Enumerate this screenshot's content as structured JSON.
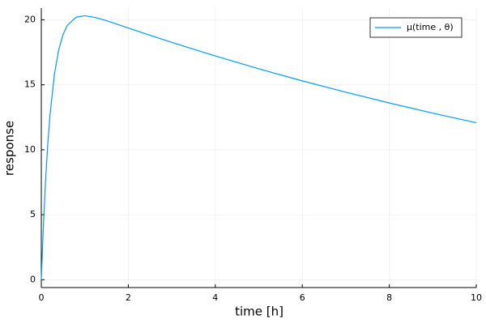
{
  "chart_data": {
    "type": "line",
    "x_label": "time [h]",
    "y_label": "response",
    "x": [
      0,
      0.05,
      0.1,
      0.15,
      0.2,
      0.3,
      0.4,
      0.5,
      0.6,
      0.8,
      1,
      1.25,
      1.5,
      2,
      2.5,
      3,
      4,
      5,
      6,
      7,
      8,
      9,
      10
    ],
    "series": [
      {
        "name": "μ(time , θ)",
        "color": "#009af9",
        "values": [
          0,
          4.33,
          7.77,
          10.51,
          12.68,
          15.77,
          17.69,
          18.87,
          19.58,
          20.2,
          20.31,
          20.17,
          19.93,
          19.37,
          18.81,
          18.26,
          17.22,
          16.23,
          15.3,
          14.43,
          13.6,
          12.82,
          12.08
        ]
      }
    ],
    "xlim": [
      0,
      10
    ],
    "xticks": [
      0,
      2,
      4,
      6,
      8,
      10
    ],
    "ylim": [
      -0.6,
      20.9
    ],
    "yticks": [
      0,
      5,
      10,
      15,
      20
    ],
    "grid": true,
    "legend": "top-right"
  }
}
